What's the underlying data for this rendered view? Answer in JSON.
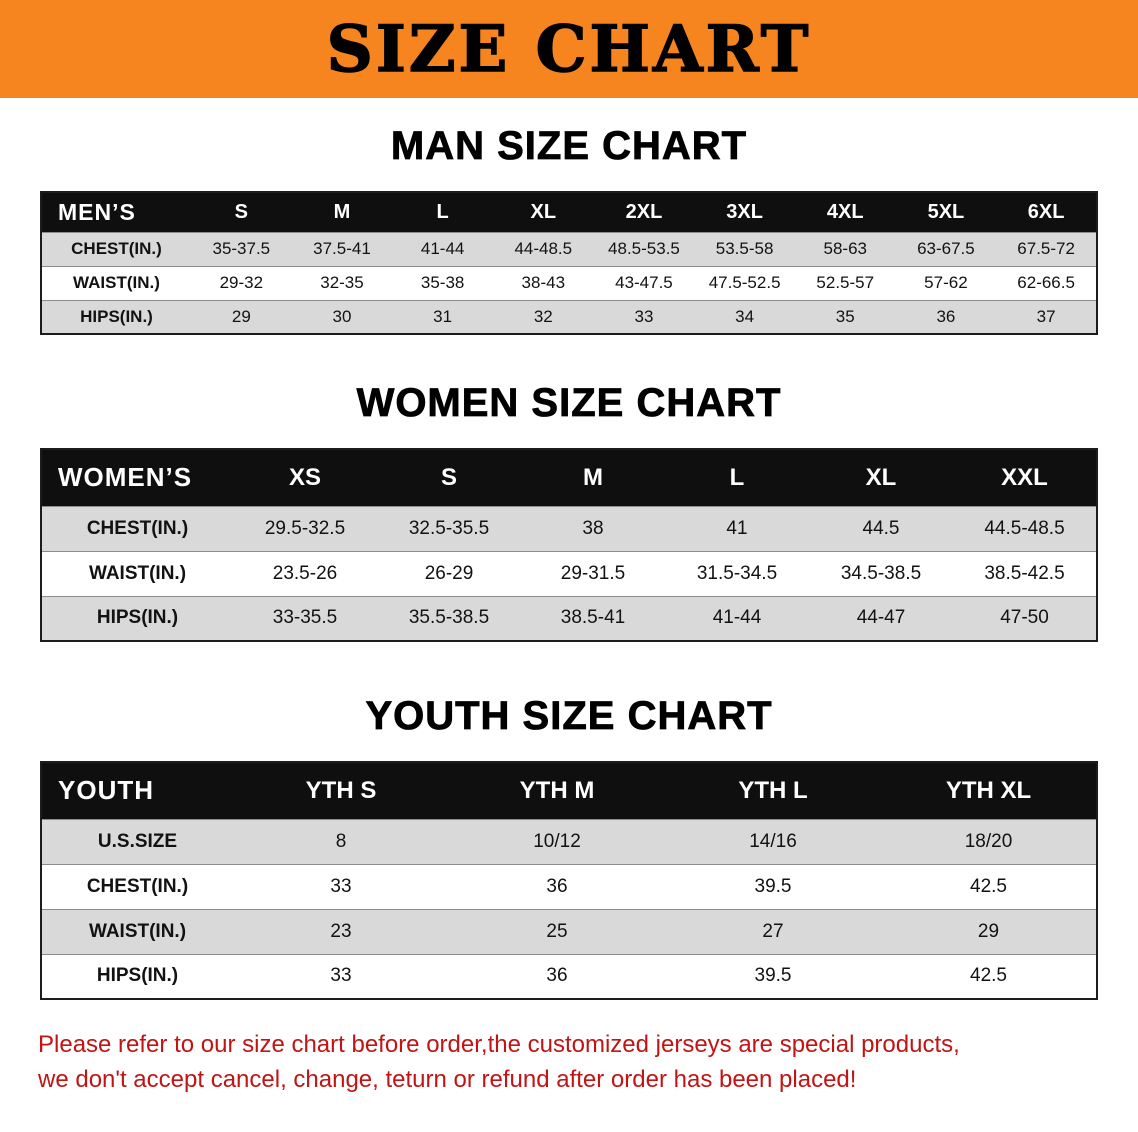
{
  "banner": {
    "title": "SIZE CHART",
    "bg_color": "#f6841f"
  },
  "sections": [
    {
      "heading": "MAN SIZE CHART",
      "table": {
        "header": [
          "MEN’S",
          "S",
          "M",
          "L",
          "XL",
          "2XL",
          "3XL",
          "4XL",
          "5XL",
          "6XL"
        ],
        "rows": [
          [
            "CHEST(IN.)",
            "35-37.5",
            "37.5-41",
            "41-44",
            "44-48.5",
            "48.5-53.5",
            "53.5-58",
            "58-63",
            "63-67.5",
            "67.5-72"
          ],
          [
            "WAIST(IN.)",
            "29-32",
            "32-35",
            "35-38",
            "38-43",
            "43-47.5",
            "47.5-52.5",
            "52.5-57",
            "57-62",
            "62-66.5"
          ],
          [
            "HIPS(IN.)",
            "29",
            "30",
            "31",
            "32",
            "33",
            "34",
            "35",
            "36",
            "37"
          ]
        ]
      }
    },
    {
      "heading": "WOMEN SIZE CHART",
      "table": {
        "header": [
          "WOMEN’S",
          "XS",
          "S",
          "M",
          "L",
          "XL",
          "XXL"
        ],
        "rows": [
          [
            "CHEST(IN.)",
            "29.5-32.5",
            "32.5-35.5",
            "38",
            "41",
            "44.5",
            "44.5-48.5"
          ],
          [
            "WAIST(IN.)",
            "23.5-26",
            "26-29",
            "29-31.5",
            "31.5-34.5",
            "34.5-38.5",
            "38.5-42.5"
          ],
          [
            "HIPS(IN.)",
            "33-35.5",
            "35.5-38.5",
            "38.5-41",
            "41-44",
            "44-47",
            "47-50"
          ]
        ]
      }
    },
    {
      "heading": "YOUTH SIZE CHART",
      "table": {
        "header": [
          "YOUTH",
          "YTH S",
          "YTH M",
          "YTH L",
          "YTH XL"
        ],
        "rows": [
          [
            "U.S.SIZE",
            "8",
            "10/12",
            "14/16",
            "18/20"
          ],
          [
            "CHEST(IN.)",
            "33",
            "36",
            "39.5",
            "42.5"
          ],
          [
            "WAIST(IN.)",
            "23",
            "25",
            "27",
            "29"
          ],
          [
            "HIPS(IN.)",
            "33",
            "36",
            "39.5",
            "42.5"
          ]
        ]
      }
    }
  ],
  "note": {
    "color": "#c21414",
    "lines": [
      "Please refer to our size chart before order,the customized jerseys are special products,",
      "we don't accept cancel, change, teturn or refund after order has been placed!"
    ]
  }
}
